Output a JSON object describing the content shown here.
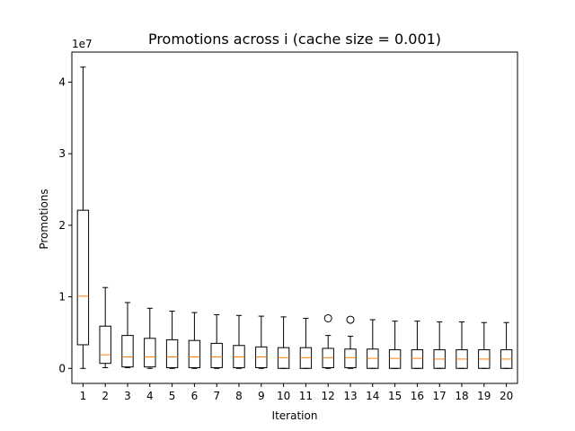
{
  "chart_data": {
    "type": "boxplot",
    "title": "Promotions across i (cache size = 0.001)",
    "xlabel": "Iteration",
    "ylabel": "Promotions",
    "y_offset_label": "1e7",
    "y_scale": 10000000,
    "ylim": [
      -2100000,
      44200000
    ],
    "yticks": [
      0,
      10000000,
      20000000,
      30000000,
      40000000
    ],
    "ytick_labels": [
      "0",
      "1",
      "2",
      "3",
      "4"
    ],
    "categories": [
      "1",
      "2",
      "3",
      "4",
      "5",
      "6",
      "7",
      "8",
      "9",
      "10",
      "11",
      "12",
      "13",
      "14",
      "15",
      "16",
      "17",
      "18",
      "19",
      "20"
    ],
    "boxes": [
      {
        "whislo": 0,
        "q1": 3300000,
        "med": 10100000,
        "q3": 22100000,
        "whishi": 42100000,
        "fliers": []
      },
      {
        "whislo": 100000,
        "q1": 700000,
        "med": 1900000,
        "q3": 5900000,
        "whishi": 11300000,
        "fliers": []
      },
      {
        "whislo": 100000,
        "q1": 200000,
        "med": 1600000,
        "q3": 4600000,
        "whishi": 9200000,
        "fliers": []
      },
      {
        "whislo": 0,
        "q1": 200000,
        "med": 1600000,
        "q3": 4200000,
        "whishi": 8400000,
        "fliers": []
      },
      {
        "whislo": 0,
        "q1": 100000,
        "med": 1600000,
        "q3": 4000000,
        "whishi": 8000000,
        "fliers": []
      },
      {
        "whislo": 0,
        "q1": 100000,
        "med": 1600000,
        "q3": 3900000,
        "whishi": 7800000,
        "fliers": []
      },
      {
        "whislo": 0,
        "q1": 100000,
        "med": 1600000,
        "q3": 3500000,
        "whishi": 7500000,
        "fliers": []
      },
      {
        "whislo": 0,
        "q1": 100000,
        "med": 1600000,
        "q3": 3200000,
        "whishi": 7400000,
        "fliers": []
      },
      {
        "whislo": 0,
        "q1": 100000,
        "med": 1600000,
        "q3": 3000000,
        "whishi": 7300000,
        "fliers": []
      },
      {
        "whislo": 0,
        "q1": 0,
        "med": 1500000,
        "q3": 2900000,
        "whishi": 7200000,
        "fliers": []
      },
      {
        "whislo": 0,
        "q1": 0,
        "med": 1500000,
        "q3": 2900000,
        "whishi": 7000000,
        "fliers": []
      },
      {
        "whislo": 0,
        "q1": 100000,
        "med": 1500000,
        "q3": 2800000,
        "whishi": 4600000,
        "fliers": [
          7000000
        ]
      },
      {
        "whislo": 0,
        "q1": 100000,
        "med": 1500000,
        "q3": 2700000,
        "whishi": 4500000,
        "fliers": [
          6800000
        ]
      },
      {
        "whislo": 0,
        "q1": 0,
        "med": 1400000,
        "q3": 2700000,
        "whishi": 6800000,
        "fliers": []
      },
      {
        "whislo": 0,
        "q1": 0,
        "med": 1400000,
        "q3": 2600000,
        "whishi": 6600000,
        "fliers": []
      },
      {
        "whislo": 0,
        "q1": 0,
        "med": 1400000,
        "q3": 2600000,
        "whishi": 6600000,
        "fliers": []
      },
      {
        "whislo": 0,
        "q1": 0,
        "med": 1300000,
        "q3": 2600000,
        "whishi": 6500000,
        "fliers": []
      },
      {
        "whislo": 0,
        "q1": 0,
        "med": 1300000,
        "q3": 2600000,
        "whishi": 6500000,
        "fliers": []
      },
      {
        "whislo": 0,
        "q1": 0,
        "med": 1300000,
        "q3": 2600000,
        "whishi": 6400000,
        "fliers": []
      },
      {
        "whislo": 0,
        "q1": 0,
        "med": 1300000,
        "q3": 2600000,
        "whishi": 6400000,
        "fliers": []
      }
    ],
    "colors": {
      "box": "#000000",
      "median": "#ff7f0e",
      "flier": "#000000"
    },
    "grid": false,
    "legend": "none"
  }
}
